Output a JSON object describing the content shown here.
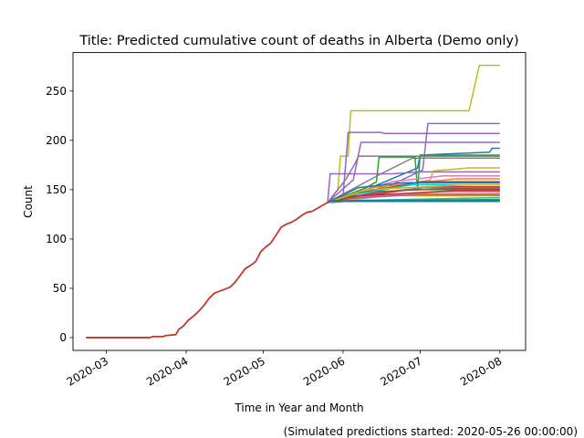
{
  "chart_data": {
    "type": "line",
    "title": "Title: Predicted cumulative count of deaths in Alberta (Demo only)",
    "xlabel": "Time in Year and Month",
    "ylabel": "Count",
    "footnote": "(Simulated predictions started: 2020-05-26 00:00:00)",
    "x_ticks": [
      "2020-03",
      "2020-04",
      "2020-05",
      "2020-06",
      "2020-07",
      "2020-08"
    ],
    "x_tick_dates": [
      "2020-03-01",
      "2020-04-01",
      "2020-05-01",
      "2020-06-01",
      "2020-07-01",
      "2020-08-01"
    ],
    "y_ticks": [
      0,
      50,
      100,
      150,
      200,
      250
    ],
    "xlim": [
      "2020-02-17",
      "2020-08-11"
    ],
    "ylim": [
      -13,
      289
    ],
    "grid": false,
    "legend": "none",
    "observed": {
      "color": "#c0392b",
      "points": [
        [
          "2020-02-22",
          0
        ],
        [
          "2020-03-18",
          0
        ],
        [
          "2020-03-19",
          1
        ],
        [
          "2020-03-23",
          1
        ],
        [
          "2020-03-24",
          2
        ],
        [
          "2020-03-28",
          3
        ],
        [
          "2020-03-29",
          8
        ],
        [
          "2020-03-31",
          12
        ],
        [
          "2020-04-02",
          18
        ],
        [
          "2020-04-04",
          22
        ],
        [
          "2020-04-06",
          27
        ],
        [
          "2020-04-08",
          33
        ],
        [
          "2020-04-10",
          40
        ],
        [
          "2020-04-12",
          45
        ],
        [
          "2020-04-15",
          48
        ],
        [
          "2020-04-18",
          51
        ],
        [
          "2020-04-20",
          56
        ],
        [
          "2020-04-22",
          63
        ],
        [
          "2020-04-24",
          70
        ],
        [
          "2020-04-26",
          73
        ],
        [
          "2020-04-28",
          77
        ],
        [
          "2020-04-30",
          87
        ],
        [
          "2020-05-02",
          92
        ],
        [
          "2020-05-04",
          96
        ],
        [
          "2020-05-06",
          104
        ],
        [
          "2020-05-08",
          112
        ],
        [
          "2020-05-10",
          115
        ],
        [
          "2020-05-12",
          117
        ],
        [
          "2020-05-14",
          120
        ],
        [
          "2020-05-16",
          124
        ],
        [
          "2020-05-18",
          127
        ],
        [
          "2020-05-20",
          128
        ],
        [
          "2020-05-22",
          131
        ],
        [
          "2020-05-24",
          134
        ],
        [
          "2020-05-26",
          137
        ]
      ]
    },
    "series": [
      {
        "color": "#bcbd22",
        "points": [
          [
            "2020-05-26",
            137
          ],
          [
            "2020-05-30",
            150
          ],
          [
            "2020-05-31",
            184
          ],
          [
            "2020-06-03",
            184
          ],
          [
            "2020-06-04",
            230
          ],
          [
            "2020-07-20",
            230
          ],
          [
            "2020-07-24",
            276
          ],
          [
            "2020-08-01",
            276
          ]
        ]
      },
      {
        "color": "#9467bd",
        "points": [
          [
            "2020-05-26",
            137
          ],
          [
            "2020-06-01",
            143
          ],
          [
            "2020-06-03",
            208
          ],
          [
            "2020-06-16",
            208
          ],
          [
            "2020-06-17",
            207
          ],
          [
            "2020-08-01",
            207
          ]
        ]
      },
      {
        "color": "#9467bd",
        "points": [
          [
            "2020-05-26",
            137
          ],
          [
            "2020-06-20",
            155
          ],
          [
            "2020-07-02",
            170
          ],
          [
            "2020-07-04",
            217
          ],
          [
            "2020-08-01",
            217
          ]
        ]
      },
      {
        "color": "#9467bd",
        "points": [
          [
            "2020-05-26",
            137
          ],
          [
            "2020-06-05",
            160
          ],
          [
            "2020-06-08",
            198
          ],
          [
            "2020-08-01",
            198
          ]
        ]
      },
      {
        "color": "#1f77b4",
        "points": [
          [
            "2020-05-26",
            137
          ],
          [
            "2020-06-10",
            150
          ],
          [
            "2020-06-30",
            172
          ],
          [
            "2020-07-01",
            185
          ],
          [
            "2020-07-28",
            188
          ],
          [
            "2020-07-29",
            192
          ],
          [
            "2020-08-01",
            192
          ]
        ]
      },
      {
        "color": "#9467bd",
        "points": [
          [
            "2020-05-26",
            137
          ],
          [
            "2020-06-02",
            160
          ],
          [
            "2020-06-06",
            178
          ],
          [
            "2020-06-07",
            184
          ],
          [
            "2020-08-01",
            184
          ]
        ]
      },
      {
        "color": "#7f7f7f",
        "points": [
          [
            "2020-05-26",
            137
          ],
          [
            "2020-06-15",
            165
          ],
          [
            "2020-06-28",
            182
          ],
          [
            "2020-08-01",
            182
          ]
        ]
      },
      {
        "color": "#2ca02c",
        "points": [
          [
            "2020-05-26",
            137
          ],
          [
            "2020-06-10",
            152
          ],
          [
            "2020-06-14",
            158
          ],
          [
            "2020-06-15",
            183
          ],
          [
            "2020-06-29",
            183
          ],
          [
            "2020-06-30",
            150
          ],
          [
            "2020-07-01",
            185
          ],
          [
            "2020-08-01",
            185
          ]
        ]
      },
      {
        "color": "#9467bd",
        "points": [
          [
            "2020-05-26",
            137
          ],
          [
            "2020-05-27",
            166
          ],
          [
            "2020-06-20",
            166
          ],
          [
            "2020-07-01",
            168
          ],
          [
            "2020-08-01",
            168
          ]
        ]
      },
      {
        "color": "#bcbd22",
        "points": [
          [
            "2020-05-26",
            137
          ],
          [
            "2020-07-05",
            160
          ],
          [
            "2020-07-06",
            169
          ],
          [
            "2020-07-20",
            172
          ],
          [
            "2020-08-01",
            172
          ]
        ]
      },
      {
        "color": "#e377c2",
        "points": [
          [
            "2020-05-26",
            137
          ],
          [
            "2020-06-20",
            158
          ],
          [
            "2020-07-10",
            164
          ],
          [
            "2020-08-01",
            164
          ]
        ]
      },
      {
        "color": "#ff7f0e",
        "points": [
          [
            "2020-05-26",
            137
          ],
          [
            "2020-06-12",
            152
          ],
          [
            "2020-07-15",
            161
          ],
          [
            "2020-08-01",
            161
          ]
        ]
      },
      {
        "color": "#8c564b",
        "points": [
          [
            "2020-05-26",
            137
          ],
          [
            "2020-06-08",
            147
          ],
          [
            "2020-07-01",
            158
          ],
          [
            "2020-08-01",
            158
          ]
        ]
      },
      {
        "color": "#17becf",
        "points": [
          [
            "2020-05-26",
            137
          ],
          [
            "2020-06-05",
            145
          ],
          [
            "2020-06-28",
            155
          ],
          [
            "2020-08-01",
            155
          ]
        ]
      },
      {
        "color": "#1f77b4",
        "points": [
          [
            "2020-05-26",
            137
          ],
          [
            "2020-06-07",
            152
          ],
          [
            "2020-06-24",
            157
          ],
          [
            "2020-08-01",
            157
          ]
        ]
      },
      {
        "color": "#2ca02c",
        "points": [
          [
            "2020-05-26",
            137
          ],
          [
            "2020-06-04",
            141
          ],
          [
            "2020-06-25",
            150
          ],
          [
            "2020-08-01",
            150
          ]
        ]
      },
      {
        "color": "#d62728",
        "points": [
          [
            "2020-05-26",
            137
          ],
          [
            "2020-06-10",
            144
          ],
          [
            "2020-07-05",
            153
          ],
          [
            "2020-08-01",
            153
          ]
        ]
      },
      {
        "color": "#7f7f7f",
        "points": [
          [
            "2020-05-26",
            137
          ],
          [
            "2020-06-12",
            146
          ],
          [
            "2020-07-02",
            152
          ],
          [
            "2020-08-01",
            152
          ]
        ]
      },
      {
        "color": "#bcbd22",
        "points": [
          [
            "2020-05-26",
            137
          ],
          [
            "2020-06-05",
            140
          ],
          [
            "2020-06-26",
            146
          ],
          [
            "2020-08-01",
            146
          ]
        ]
      },
      {
        "color": "#e377c2",
        "points": [
          [
            "2020-05-26",
            137
          ],
          [
            "2020-06-08",
            143
          ],
          [
            "2020-07-08",
            148
          ],
          [
            "2020-08-01",
            148
          ]
        ]
      },
      {
        "color": "#ff7f0e",
        "points": [
          [
            "2020-05-26",
            137
          ],
          [
            "2020-06-01",
            140
          ],
          [
            "2020-06-20",
            144
          ],
          [
            "2020-08-01",
            144
          ]
        ]
      },
      {
        "color": "#17becf",
        "points": [
          [
            "2020-05-26",
            137
          ],
          [
            "2020-06-05",
            139
          ],
          [
            "2020-08-01",
            142
          ]
        ]
      },
      {
        "color": "#9467bd",
        "points": [
          [
            "2020-05-26",
            137
          ],
          [
            "2020-06-03",
            141
          ],
          [
            "2020-06-30",
            145
          ],
          [
            "2020-08-01",
            145
          ]
        ]
      },
      {
        "color": "#8c564b",
        "points": [
          [
            "2020-05-26",
            137
          ],
          [
            "2020-06-15",
            148
          ],
          [
            "2020-07-10",
            151
          ],
          [
            "2020-08-01",
            151
          ]
        ]
      },
      {
        "color": "#1f77b4",
        "points": [
          [
            "2020-05-26",
            137
          ],
          [
            "2020-06-02",
            138
          ],
          [
            "2020-08-01",
            138
          ]
        ]
      },
      {
        "color": "#2ca02c",
        "points": [
          [
            "2020-05-26",
            137
          ],
          [
            "2020-06-01",
            139
          ],
          [
            "2020-08-01",
            140
          ]
        ]
      },
      {
        "color": "#d62728",
        "points": [
          [
            "2020-05-26",
            137
          ],
          [
            "2020-06-03",
            143
          ],
          [
            "2020-07-15",
            149
          ],
          [
            "2020-08-01",
            149
          ]
        ]
      },
      {
        "color": "#bcbd22",
        "points": [
          [
            "2020-05-26",
            137
          ],
          [
            "2020-06-10",
            150
          ],
          [
            "2020-07-20",
            155
          ],
          [
            "2020-08-01",
            155
          ]
        ]
      },
      {
        "color": "#1f77b4",
        "points": [
          [
            "2020-05-26",
            137
          ],
          [
            "2020-05-28",
            139
          ],
          [
            "2020-08-01",
            139
          ]
        ]
      }
    ]
  }
}
